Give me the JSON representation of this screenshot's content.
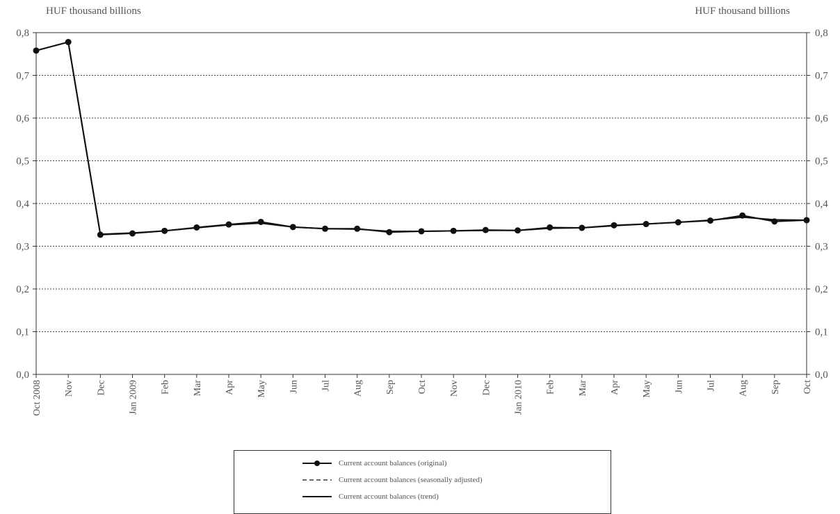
{
  "units": {
    "left": "HUF thousand billions",
    "right": "HUF thousand billions"
  },
  "chart_data": {
    "type": "line",
    "categories": [
      "Oct 2008",
      "Nov",
      "Dec",
      "Jan 2009",
      "Feb",
      "Mar",
      "Apr",
      "May",
      "Jun",
      "Jul",
      "Aug",
      "Sep",
      "Oct",
      "Nov",
      "Dec",
      "Jan 2010",
      "Feb",
      "Mar",
      "Apr",
      "May",
      "Jun",
      "Jul",
      "Aug",
      "Sep",
      "Oct"
    ],
    "y_ticks": [
      "0,0",
      "0,1",
      "0,2",
      "0,3",
      "0,4",
      "0,5",
      "0,6",
      "0,7",
      "0,8"
    ],
    "ylim": [
      0,
      0.8
    ],
    "grid": true,
    "series": [
      {
        "name": "Current account balances (original)",
        "values": [
          0.758,
          0.778,
          0.327,
          0.33,
          0.336,
          0.344,
          0.351,
          0.357,
          0.345,
          0.341,
          0.341,
          0.333,
          0.335,
          0.336,
          0.338,
          0.337,
          0.344,
          0.343,
          0.349,
          0.352,
          0.356,
          0.36,
          0.372,
          0.358,
          0.361
        ],
        "style": "solid-with-markers",
        "color": "#111111"
      },
      {
        "name": "Current account balances (seasonally adjusted)",
        "values": [
          0.758,
          0.778,
          0.327,
          0.33,
          0.336,
          0.344,
          0.351,
          0.357,
          0.345,
          0.341,
          0.341,
          0.333,
          0.335,
          0.336,
          0.338,
          0.337,
          0.344,
          0.343,
          0.349,
          0.352,
          0.356,
          0.36,
          0.372,
          0.358,
          0.361
        ],
        "style": "dashed",
        "color": "#111111"
      },
      {
        "name": "Current account balances (trend)",
        "values": [
          0.758,
          0.778,
          0.328,
          0.331,
          0.336,
          0.343,
          0.35,
          0.354,
          0.345,
          0.341,
          0.34,
          0.335,
          0.335,
          0.336,
          0.337,
          0.337,
          0.342,
          0.343,
          0.348,
          0.352,
          0.356,
          0.361,
          0.368,
          0.362,
          0.361
        ],
        "style": "solid",
        "color": "#111111"
      }
    ]
  },
  "legend": [
    {
      "label": "Current account balances (original)",
      "style": "solid-with-markers"
    },
    {
      "label": "Current account balances (seasonally adjusted)",
      "style": "dashed"
    },
    {
      "label": "Current account balances (trend)",
      "style": "solid"
    }
  ]
}
